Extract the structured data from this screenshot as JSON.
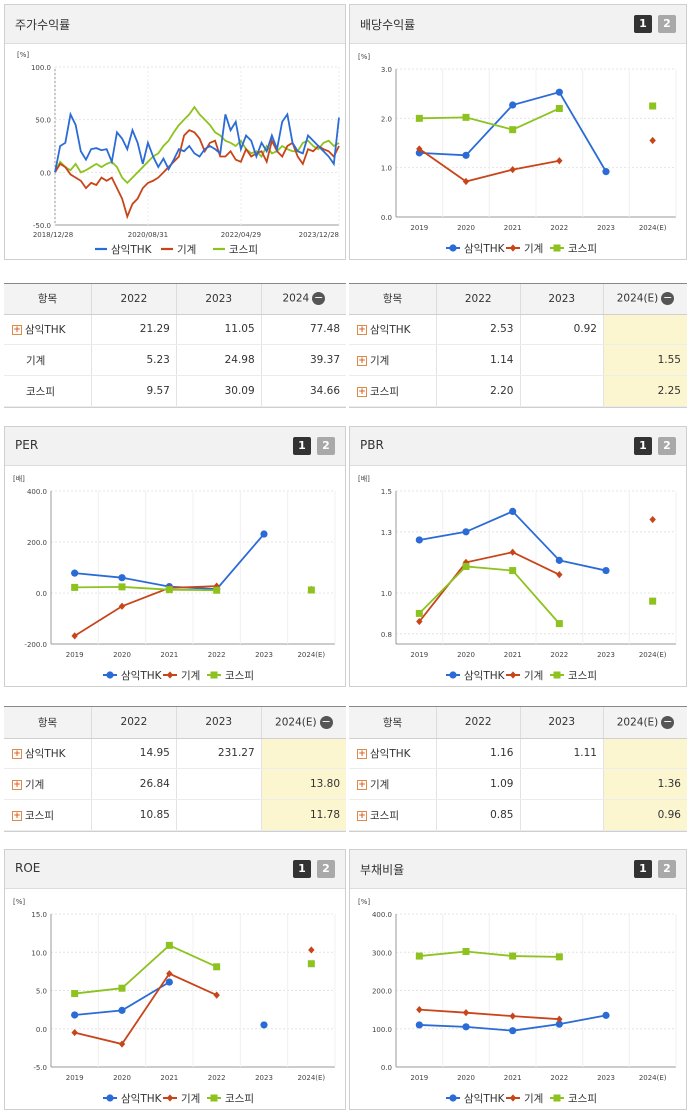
{
  "pagination": {
    "p1": "1",
    "p2": "2"
  },
  "colors": {
    "company": "#2b6bd6",
    "industry": "#c8451a",
    "kospi": "#8dc21f"
  },
  "panels": {
    "stock_return": {
      "title": "주가수익률",
      "unit": "[%]",
      "legend": [
        "삼익THK",
        "기계",
        "코스피"
      ],
      "chart_data": {
        "type": "line",
        "y_ticks": [
          "100.0",
          "50.0",
          "0.0",
          "-50.0"
        ],
        "ylim": [
          -50,
          100
        ],
        "x_ticks": [
          "2018/12/28",
          "2020/08/31",
          "2022/04/29",
          "2023/12/28"
        ],
        "x_tick_index": [
          0,
          18,
          36,
          55
        ],
        "series": [
          {
            "name": "삼익THK",
            "values": [
              0,
              25,
              28,
              55,
              45,
              20,
              12,
              22,
              23,
              21,
              22,
              10,
              38,
              32,
              22,
              40,
              28,
              8,
              28,
              15,
              5,
              13,
              3,
              12,
              22,
              20,
              25,
              18,
              15,
              22,
              25,
              22,
              18,
              55,
              40,
              48,
              22,
              35,
              30,
              15,
              28,
              20,
              35,
              22,
              48,
              55,
              28,
              20,
              18,
              35,
              30,
              25,
              20,
              15,
              8,
              52
            ]
          },
          {
            "name": "기계",
            "values": [
              0,
              8,
              5,
              -2,
              -5,
              -8,
              -15,
              -10,
              -12,
              -5,
              -8,
              -5,
              -15,
              -25,
              -42,
              -30,
              -25,
              -15,
              -10,
              -8,
              -5,
              0,
              5,
              10,
              15,
              35,
              40,
              38,
              32,
              20,
              28,
              30,
              15,
              15,
              20,
              12,
              10,
              22,
              15,
              18,
              20,
              10,
              30,
              20,
              15,
              25,
              28,
              15,
              8,
              22,
              20,
              25,
              22,
              20,
              15,
              25
            ]
          },
          {
            "name": "코스피",
            "values": [
              0,
              10,
              5,
              2,
              8,
              0,
              2,
              5,
              8,
              5,
              8,
              10,
              5,
              -5,
              -10,
              -5,
              0,
              5,
              10,
              15,
              18,
              25,
              30,
              38,
              45,
              50,
              55,
              62,
              55,
              50,
              45,
              38,
              35,
              30,
              28,
              25,
              30,
              22,
              18,
              20,
              15,
              25,
              18,
              20,
              25,
              22,
              20,
              20,
              28,
              30,
              25,
              22,
              28,
              30,
              25,
              28
            ]
          }
        ]
      }
    },
    "dividend_yield": {
      "title": "배당수익률",
      "unit": "[%]",
      "legend": [
        "삼익THK",
        "기계",
        "코스피"
      ],
      "chart_data": {
        "type": "line",
        "categories": [
          "2019",
          "2020",
          "2021",
          "2022",
          "2023",
          "2024(E)"
        ],
        "y_ticks": [
          "3.0",
          "2.0",
          "1.0",
          "0.0"
        ],
        "ylim": [
          0,
          3
        ],
        "series": [
          {
            "name": "삼익THK",
            "values": [
              1.3,
              1.25,
              2.27,
              2.53,
              0.92,
              null
            ]
          },
          {
            "name": "기계",
            "values": [
              1.38,
              0.72,
              0.96,
              1.14,
              null,
              1.55
            ]
          },
          {
            "name": "코스피",
            "values": [
              2.0,
              2.02,
              1.77,
              2.2,
              null,
              2.25
            ]
          }
        ]
      }
    },
    "per": {
      "title": "PER",
      "unit": "[배]",
      "legend": [
        "삼익THK",
        "기계",
        "코스피"
      ],
      "chart_data": {
        "type": "line",
        "categories": [
          "2019",
          "2020",
          "2021",
          "2022",
          "2023",
          "2024(E)"
        ],
        "y_ticks": [
          "400.0",
          "200.0",
          "0.0",
          "-200.0"
        ],
        "ylim": [
          -200,
          400
        ],
        "series": [
          {
            "name": "삼익THK",
            "values": [
              78,
              60,
              25,
              14.95,
              231.27,
              null
            ]
          },
          {
            "name": "기계",
            "values": [
              -168,
              -52,
              20,
              26.84,
              null,
              13.8
            ]
          },
          {
            "name": "코스피",
            "values": [
              22,
              24,
              13,
              10.85,
              null,
              11.78
            ]
          }
        ]
      }
    },
    "pbr": {
      "title": "PBR",
      "unit": "[배]",
      "legend": [
        "삼익THK",
        "기계",
        "코스피"
      ],
      "chart_data": {
        "type": "line",
        "categories": [
          "2019",
          "2020",
          "2021",
          "2022",
          "2023",
          "2024(E)"
        ],
        "y_ticks": [
          "1.5",
          "1.3",
          "1.0",
          "0.8"
        ],
        "ylim": [
          0.75,
          1.5
        ],
        "series": [
          {
            "name": "삼익THK",
            "values": [
              1.26,
              1.3,
              1.4,
              1.16,
              1.11,
              null
            ]
          },
          {
            "name": "기계",
            "values": [
              0.86,
              1.15,
              1.2,
              1.09,
              null,
              1.36
            ]
          },
          {
            "name": "코스피",
            "values": [
              0.9,
              1.13,
              1.11,
              0.85,
              null,
              0.96
            ]
          }
        ]
      }
    },
    "roe": {
      "title": "ROE",
      "unit": "[%]",
      "legend": [
        "삼익THK",
        "기계",
        "코스피"
      ],
      "chart_data": {
        "type": "line",
        "categories": [
          "2019",
          "2020",
          "2021",
          "2022",
          "2023",
          "2024(E)"
        ],
        "y_ticks": [
          "15.0",
          "10.0",
          "5.0",
          "0.0",
          "-5.0"
        ],
        "ylim": [
          -5,
          15
        ],
        "series": [
          {
            "name": "삼익THK",
            "values": [
              1.8,
              2.4,
              6.1,
              null,
              0.5,
              null
            ]
          },
          {
            "name": "기계",
            "values": [
              -0.5,
              -2.0,
              7.2,
              4.4,
              null,
              10.3
            ]
          },
          {
            "name": "코스피",
            "values": [
              4.6,
              5.3,
              10.9,
              8.1,
              null,
              8.5
            ]
          }
        ]
      }
    },
    "debt_ratio": {
      "title": "부채비율",
      "unit": "[%]",
      "legend": [
        "삼익THK",
        "기계",
        "코스피"
      ],
      "chart_data": {
        "type": "line",
        "categories": [
          "2019",
          "2020",
          "2021",
          "2022",
          "2023",
          "2024(E)"
        ],
        "y_ticks": [
          "400.0",
          "300.0",
          "200.0",
          "100.0",
          "0.0"
        ],
        "ylim": [
          0,
          400
        ],
        "series": [
          {
            "name": "삼익THK",
            "values": [
              110,
              105,
              95,
              112,
              135,
              null
            ]
          },
          {
            "name": "기계",
            "values": [
              150,
              142,
              133,
              125,
              null,
              null
            ]
          },
          {
            "name": "코스피",
            "values": [
              290,
              302,
              290,
              288,
              null,
              null
            ]
          }
        ]
      }
    }
  },
  "tables": {
    "stock_return": {
      "headers": [
        "항목",
        "2022",
        "2023",
        "2024"
      ],
      "rows": [
        {
          "name": "삼익THK",
          "v": [
            "21.29",
            "11.05",
            "77.48"
          ]
        },
        {
          "name": "기계",
          "v": [
            "5.23",
            "24.98",
            "39.37"
          ]
        },
        {
          "name": "코스피",
          "v": [
            "9.57",
            "30.09",
            "34.66"
          ]
        }
      ]
    },
    "dividend_yield": {
      "headers": [
        "항목",
        "2022",
        "2023",
        "2024(E)"
      ],
      "rows": [
        {
          "name": "삼익THK",
          "v": [
            "2.53",
            "0.92",
            ""
          ]
        },
        {
          "name": "기계",
          "v": [
            "1.14",
            "",
            "1.55"
          ]
        },
        {
          "name": "코스피",
          "v": [
            "2.20",
            "",
            "2.25"
          ]
        }
      ]
    },
    "per": {
      "headers": [
        "항목",
        "2022",
        "2023",
        "2024(E)"
      ],
      "rows": [
        {
          "name": "삼익THK",
          "v": [
            "14.95",
            "231.27",
            ""
          ]
        },
        {
          "name": "기계",
          "v": [
            "26.84",
            "",
            "13.80"
          ]
        },
        {
          "name": "코스피",
          "v": [
            "10.85",
            "",
            "11.78"
          ]
        }
      ]
    },
    "pbr": {
      "headers": [
        "항목",
        "2022",
        "2023",
        "2024(E)"
      ],
      "rows": [
        {
          "name": "삼익THK",
          "v": [
            "1.16",
            "1.11",
            ""
          ]
        },
        {
          "name": "기계",
          "v": [
            "1.09",
            "",
            "1.36"
          ]
        },
        {
          "name": "코스피",
          "v": [
            "0.85",
            "",
            "0.96"
          ]
        }
      ]
    }
  }
}
